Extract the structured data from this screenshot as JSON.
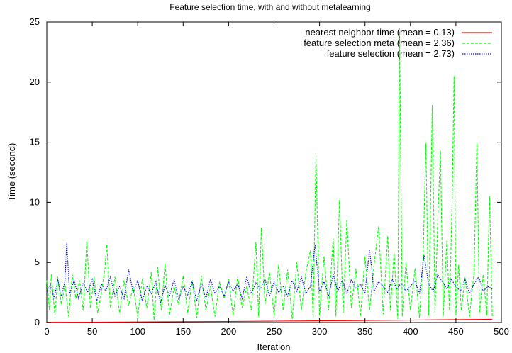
{
  "chart_data": {
    "type": "line",
    "title": "Feature selection time, with and without metalearning",
    "xlabel": "Iteration",
    "ylabel": "Time (second)",
    "xlim": [
      0,
      500
    ],
    "ylim": [
      0,
      25
    ],
    "xticks": [
      0,
      50,
      100,
      150,
      200,
      250,
      300,
      350,
      400,
      450,
      500
    ],
    "yticks": [
      0,
      5,
      10,
      15,
      20,
      25
    ],
    "grid": false,
    "legend_position": "top-right",
    "series": [
      {
        "name": "nearest neighbor time (mean = 0.13)",
        "color": "#ff0000",
        "dash": "solid",
        "x": [
          0,
          50,
          100,
          150,
          200,
          250,
          300,
          350,
          400,
          450,
          490
        ],
        "y": [
          0.02,
          0.03,
          0.05,
          0.07,
          0.09,
          0.12,
          0.14,
          0.17,
          0.2,
          0.24,
          0.27
        ]
      },
      {
        "name": "feature selection meta (mean = 2.36)",
        "color": "#00ff00",
        "dash": "dashed",
        "x": [
          0,
          3,
          5,
          9,
          12,
          16,
          20,
          24,
          28,
          32,
          36,
          40,
          44,
          48,
          52,
          56,
          60,
          64,
          66,
          70,
          75,
          80,
          85,
          90,
          95,
          100,
          105,
          110,
          115,
          118,
          122,
          126,
          130,
          135,
          140,
          145,
          150,
          155,
          160,
          165,
          170,
          175,
          180,
          185,
          190,
          195,
          200,
          205,
          210,
          215,
          220,
          225,
          230,
          233,
          236,
          240,
          245,
          250,
          255,
          260,
          265,
          270,
          275,
          280,
          285,
          290,
          293,
          296,
          300,
          305,
          310,
          315,
          318,
          322,
          326,
          330,
          335,
          340,
          345,
          350,
          355,
          360,
          365,
          370,
          375,
          378,
          382,
          386,
          388,
          391,
          395,
          400,
          405,
          410,
          414,
          417,
          420,
          424,
          427,
          430,
          433,
          436,
          440,
          443,
          446,
          448,
          450,
          453,
          456,
          460,
          465,
          470,
          473,
          476,
          480,
          484,
          487,
          490
        ],
        "y": [
          3.5,
          1.0,
          4.0,
          0.6,
          3.8,
          1.5,
          3.2,
          0.5,
          4.0,
          2.0,
          3.5,
          1.0,
          6.8,
          1.2,
          3.8,
          0.8,
          2.5,
          4.5,
          6.5,
          1.2,
          3.8,
          0.8,
          3.5,
          1.4,
          3.0,
          0.5,
          3.6,
          1.2,
          4.2,
          0.2,
          4.6,
          1.0,
          4.9,
          0.6,
          3.0,
          1.5,
          3.9,
          0.8,
          3.5,
          0.4,
          3.9,
          1.0,
          3.0,
          0.5,
          3.4,
          2.0,
          3.6,
          0.6,
          3.8,
          1.2,
          3.0,
          1.0,
          6.7,
          0.5,
          7.9,
          1.5,
          4.2,
          0.6,
          4.8,
          1.0,
          4.4,
          0.3,
          5.0,
          1.0,
          4.2,
          6.0,
          0.4,
          13.9,
          0.6,
          5.5,
          1.0,
          7.0,
          0.5,
          10.2,
          0.8,
          8.5,
          1.2,
          4.5,
          0.5,
          5.5,
          1.0,
          4.8,
          8.0,
          0.7,
          7.2,
          1.0,
          5.8,
          0.3,
          24.2,
          0.5,
          5.0,
          1.0,
          4.5,
          0.4,
          5.5,
          14.9,
          0.6,
          18.1,
          0.8,
          8.5,
          14.3,
          0.5,
          6.8,
          1.0,
          10.6,
          20.5,
          0.6,
          4.8,
          1.0,
          3.8,
          0.5,
          4.2,
          14.9,
          0.8,
          4.0,
          0.6,
          10.5,
          0.5
        ]
      },
      {
        "name": "feature selection (mean = 2.73)",
        "color": "#0000ff",
        "dash": "dotted",
        "x": [
          0,
          4,
          8,
          12,
          16,
          20,
          22,
          25,
          30,
          35,
          40,
          45,
          50,
          55,
          60,
          65,
          70,
          75,
          80,
          85,
          90,
          95,
          100,
          105,
          110,
          115,
          120,
          125,
          130,
          135,
          140,
          145,
          150,
          155,
          160,
          165,
          170,
          175,
          180,
          185,
          190,
          195,
          200,
          205,
          210,
          215,
          220,
          225,
          230,
          235,
          240,
          245,
          250,
          255,
          260,
          265,
          270,
          275,
          280,
          285,
          290,
          295,
          300,
          305,
          310,
          315,
          320,
          325,
          330,
          335,
          340,
          345,
          350,
          355,
          360,
          365,
          370,
          375,
          380,
          385,
          390,
          395,
          400,
          405,
          410,
          415,
          420,
          425,
          430,
          435,
          440,
          445,
          450,
          455,
          460,
          465,
          470,
          475,
          480,
          485,
          490
        ],
        "y": [
          2.5,
          3.2,
          2.0,
          3.6,
          2.2,
          3.4,
          6.7,
          2.4,
          3.5,
          2.0,
          3.3,
          2.5,
          3.6,
          1.8,
          3.2,
          2.6,
          3.8,
          2.2,
          3.0,
          2.0,
          4.4,
          2.5,
          3.5,
          1.8,
          3.0,
          2.4,
          3.4,
          1.6,
          3.1,
          2.2,
          3.6,
          1.9,
          3.0,
          2.3,
          3.4,
          1.8,
          3.2,
          2.0,
          3.6,
          2.4,
          3.0,
          2.2,
          3.4,
          2.6,
          3.2,
          2.0,
          3.8,
          2.4,
          3.3,
          2.8,
          3.6,
          2.2,
          3.4,
          2.5,
          3.0,
          2.2,
          3.5,
          2.6,
          3.8,
          2.4,
          3.0,
          6.5,
          2.6,
          3.4,
          2.2,
          4.0,
          2.6,
          3.5,
          2.4,
          3.6,
          2.8,
          3.2,
          2.4,
          6.1,
          2.6,
          3.4,
          3.0,
          2.5,
          3.6,
          2.8,
          3.3,
          2.6,
          3.0,
          3.5,
          2.4,
          5.6,
          3.2,
          2.6,
          4.0,
          3.4,
          2.8,
          3.6,
          3.0,
          2.6,
          3.6,
          2.4,
          3.2,
          3.8,
          2.6,
          3.0,
          2.8
        ]
      }
    ]
  }
}
